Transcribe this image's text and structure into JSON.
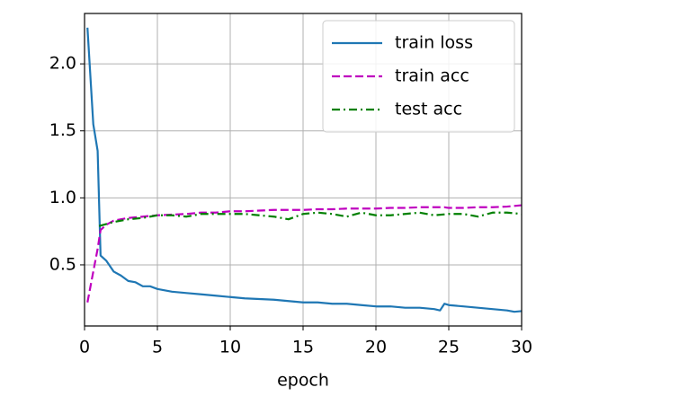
{
  "chart_data": {
    "type": "line",
    "xlabel": "epoch",
    "xlim": [
      0,
      30
    ],
    "ylim": [
      0.044,
      2.376
    ],
    "xticks": [
      0,
      5,
      10,
      15,
      20,
      25,
      30
    ],
    "yticks": [
      0.5,
      {
        "value": 1,
        "label": "1.0"
      },
      1.5,
      {
        "value": 2,
        "label": "2.0"
      }
    ],
    "grid": true,
    "legend": "upper right",
    "series": [
      {
        "name": "train loss",
        "color": "#1f77b4",
        "dash": "solid",
        "x": [
          0.2,
          0.6,
          0.9,
          1.1,
          1.5,
          2,
          2.5,
          3,
          3.5,
          4,
          4.5,
          5,
          6,
          7,
          8,
          9,
          10,
          11,
          12,
          13,
          14,
          15,
          16,
          17,
          18,
          19,
          20,
          21,
          22,
          23,
          24,
          24.4,
          24.7,
          25,
          26,
          27,
          28,
          29,
          29.5,
          30
        ],
        "values": [
          2.27,
          1.55,
          1.35,
          0.57,
          0.53,
          0.45,
          0.42,
          0.38,
          0.37,
          0.34,
          0.34,
          0.32,
          0.3,
          0.29,
          0.28,
          0.27,
          0.26,
          0.25,
          0.245,
          0.24,
          0.23,
          0.22,
          0.22,
          0.21,
          0.21,
          0.2,
          0.19,
          0.19,
          0.18,
          0.18,
          0.17,
          0.16,
          0.21,
          0.2,
          0.19,
          0.18,
          0.17,
          0.16,
          0.15,
          0.155
        ]
      },
      {
        "name": "train acc",
        "color": "#bf00bf",
        "dash": "dashed",
        "x": [
          0.2,
          0.6,
          0.9,
          1.1,
          1.5,
          2,
          2.5,
          3,
          3.5,
          4,
          4.5,
          5,
          6,
          7,
          8,
          9,
          10,
          11,
          12,
          13,
          14,
          15,
          16,
          17,
          18,
          19,
          20,
          21,
          22,
          23,
          24,
          24.4,
          24.7,
          25,
          26,
          27,
          28,
          29,
          29.5,
          30
        ],
        "values": [
          0.22,
          0.45,
          0.62,
          0.76,
          0.8,
          0.83,
          0.84,
          0.85,
          0.855,
          0.86,
          0.865,
          0.87,
          0.875,
          0.88,
          0.89,
          0.89,
          0.9,
          0.9,
          0.905,
          0.91,
          0.91,
          0.91,
          0.915,
          0.915,
          0.92,
          0.92,
          0.92,
          0.925,
          0.925,
          0.93,
          0.93,
          0.93,
          0.93,
          0.925,
          0.925,
          0.93,
          0.93,
          0.935,
          0.94,
          0.945
        ]
      },
      {
        "name": "test acc",
        "color": "#008000",
        "dash": "dashdot",
        "x": [
          1,
          2,
          3,
          4,
          5,
          6,
          7,
          8,
          9,
          10,
          11,
          12,
          13,
          14,
          15,
          16,
          17,
          18,
          19,
          20,
          21,
          22,
          23,
          24,
          25,
          26,
          27,
          28,
          29,
          30
        ],
        "values": [
          0.79,
          0.82,
          0.84,
          0.85,
          0.87,
          0.87,
          0.86,
          0.88,
          0.88,
          0.88,
          0.88,
          0.87,
          0.86,
          0.84,
          0.88,
          0.89,
          0.88,
          0.86,
          0.89,
          0.87,
          0.87,
          0.88,
          0.89,
          0.87,
          0.88,
          0.88,
          0.86,
          0.89,
          0.89,
          0.88
        ]
      }
    ]
  }
}
